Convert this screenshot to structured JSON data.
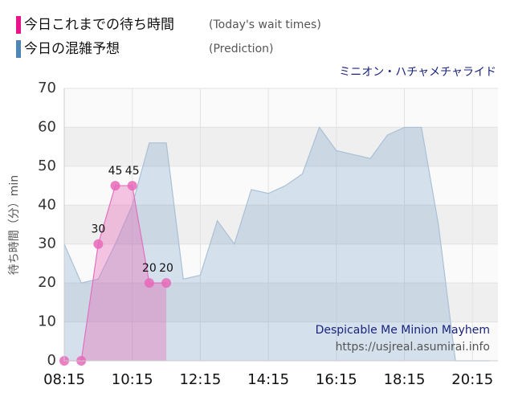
{
  "chart_data": {
    "type": "area",
    "title": "ミニオン・ハチャメチャライド",
    "annotations": [
      "Despicable Me Minion Mayhem",
      "https://usjreal.asumirai.info"
    ],
    "ylabel": "待ち時間（分）min",
    "xlim": [
      495,
      1260
    ],
    "ylim": [
      0,
      70
    ],
    "xticks": [
      {
        "value": 495,
        "label": "08:15"
      },
      {
        "value": 615,
        "label": "10:15"
      },
      {
        "value": 735,
        "label": "12:15"
      },
      {
        "value": 855,
        "label": "14:15"
      },
      {
        "value": 975,
        "label": "16:15"
      },
      {
        "value": 1095,
        "label": "18:15"
      },
      {
        "value": 1215,
        "label": "20:15"
      }
    ],
    "yticks": [
      0,
      10,
      20,
      30,
      40,
      50,
      60,
      70
    ],
    "grid": true,
    "series": [
      {
        "name": "今日これまでの待ち時間",
        "note": "(Today's wait times)",
        "color": "#e868b8",
        "x": [
          495,
          525,
          555,
          585,
          615,
          645,
          675
        ],
        "values": [
          0,
          0,
          30,
          45,
          45,
          20,
          20
        ]
      },
      {
        "name": "今日の混雑予想",
        "note": "(Prediction)",
        "color": "#4f86b5",
        "x": [
          495,
          525,
          555,
          585,
          615,
          645,
          675,
          705,
          735,
          765,
          795,
          825,
          855,
          885,
          915,
          945,
          975,
          1005,
          1035,
          1065,
          1095,
          1125,
          1155,
          1185,
          1215,
          1245
        ],
        "values": [
          30,
          20,
          21,
          30,
          40,
          56,
          56,
          21,
          22,
          36,
          30,
          44,
          43,
          45,
          48,
          60,
          54,
          53,
          52,
          58,
          60,
          60,
          35,
          0,
          0,
          0
        ]
      }
    ]
  }
}
